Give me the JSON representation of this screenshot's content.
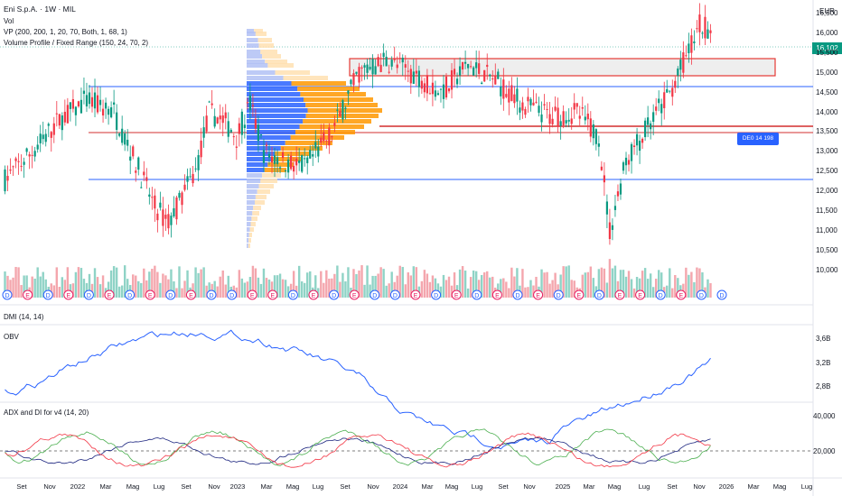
{
  "header": {
    "symbol_line": "Eni S.p.A. · 1W · MIL",
    "vol_label": "Vol",
    "vp_label": "VP (200, 200, 1, 20, 70, Both, 1, 68, 1)",
    "vpfr_label": "Volume Profile / Fixed Range (150, 24, 70, 2)"
  },
  "currency": "EUR",
  "last_price": "16,102",
  "alert_label": "DE0 14 198",
  "price_axis": [
    "16,500",
    "16,000",
    "15,500",
    "15,000",
    "14,500",
    "14,000",
    "13,500",
    "13,000",
    "12,500",
    "12,000",
    "11,500",
    "11,000",
    "10,500",
    "10,000"
  ],
  "panes": {
    "dmi_label": "DMI (14, 14)",
    "obv_label": "OBV",
    "obv_axis": [
      "3,6B",
      "3,2B",
      "2,8B"
    ],
    "adx_label": "ADX and DI for v4 (14, 20)",
    "adx_axis": [
      "40,000",
      "20,000"
    ]
  },
  "time_axis": [
    "Set",
    "Nov",
    "2022",
    "Mar",
    "Mag",
    "Lug",
    "Set",
    "Nov",
    "2023",
    "Mar",
    "Mag",
    "Lug",
    "Set",
    "Nov",
    "2024",
    "Mar",
    "Mag",
    "Lug",
    "Set",
    "Nov",
    "2025",
    "Mar",
    "Mag",
    "Lug",
    "Set",
    "Nov",
    "2026",
    "Mar",
    "Mag",
    "Lug"
  ],
  "colors": {
    "up": "#089981",
    "down": "#f23645",
    "obv_line": "#2962ff",
    "adx_line": "#1a237e",
    "di_plus": "#4caf50",
    "di_minus": "#f23645",
    "hline_blue": "#2962ff",
    "hline_red": "#d32f2f"
  },
  "event_markers": [
    "D",
    "E",
    "D",
    "E",
    "D",
    "E",
    "D",
    "E",
    "D",
    "E",
    "D",
    "D",
    "E",
    "E",
    "D",
    "E",
    "D",
    "E",
    "D",
    "D",
    "E",
    "D",
    "E",
    "D",
    "E",
    "D",
    "E",
    "D",
    "E",
    "D",
    "E",
    "E",
    "D",
    "E",
    "D",
    "D"
  ]
}
